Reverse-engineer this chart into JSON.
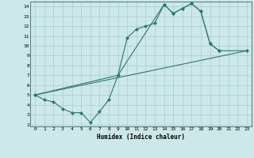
{
  "xlabel": "Humidex (Indice chaleur)",
  "bg_color": "#cce8e8",
  "line_color": "#2a7a6a",
  "grid_color": "#aacccc",
  "xlim": [
    -0.5,
    23.5
  ],
  "ylim": [
    1.8,
    14.5
  ],
  "xticks": [
    0,
    1,
    2,
    3,
    4,
    5,
    6,
    7,
    8,
    9,
    10,
    11,
    12,
    13,
    14,
    15,
    16,
    17,
    18,
    19,
    20,
    21,
    22,
    23
  ],
  "yticks": [
    2,
    3,
    4,
    5,
    6,
    7,
    8,
    9,
    10,
    11,
    12,
    13,
    14
  ],
  "series": [
    {
      "x": [
        0,
        1,
        2,
        3,
        4,
        5,
        6,
        7,
        8,
        9,
        10,
        11,
        12,
        13,
        14,
        15,
        16,
        17,
        18,
        19,
        20
      ],
      "y": [
        5.0,
        4.5,
        4.3,
        3.6,
        3.2,
        3.2,
        2.2,
        3.3,
        4.5,
        7.0,
        10.8,
        11.7,
        12.0,
        12.3,
        14.2,
        13.3,
        13.8,
        14.3,
        13.5,
        10.2,
        9.5
      ]
    },
    {
      "x": [
        0,
        9,
        14,
        15,
        16,
        17,
        18,
        19,
        20,
        23
      ],
      "y": [
        5.0,
        7.0,
        14.2,
        13.3,
        13.8,
        14.3,
        13.5,
        10.2,
        9.5,
        9.5
      ]
    },
    {
      "x": [
        0,
        23
      ],
      "y": [
        5.0,
        9.5
      ]
    }
  ]
}
